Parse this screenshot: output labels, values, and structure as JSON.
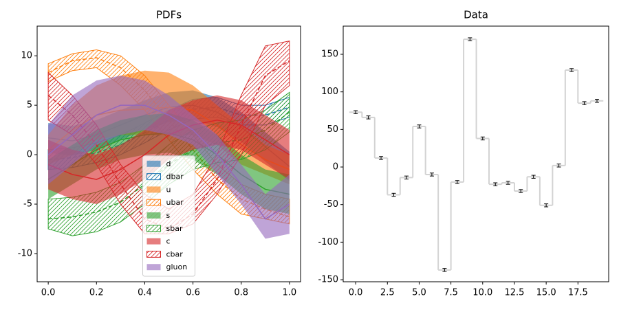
{
  "chart_data": [
    {
      "type": "band",
      "title": "PDFs",
      "x": [
        0,
        0.1,
        0.2,
        0.3,
        0.4,
        0.5,
        0.6,
        0.7,
        0.8,
        0.9,
        1.0
      ],
      "xlim": [
        -0.046,
        1.046
      ],
      "xticks": [
        {
          "value": 0,
          "label": "0.0"
        },
        0.2,
        0.4,
        0.6,
        0.8,
        {
          "value": 1,
          "label": "1.0"
        }
      ],
      "ylim": [
        -12.85,
        13
      ],
      "yticks": [
        -10,
        -5,
        0,
        5,
        10
      ],
      "legend": "lower center",
      "series": [
        {
          "name": "d",
          "color": "#1f77b4",
          "style": "filled",
          "values": [
            1.7,
            1.4,
            2.0,
            3.0,
            4.0,
            4.8,
            5.0,
            4.3,
            2.8,
            0.8,
            -1.2
          ],
          "upper": [
            3.2,
            2.9,
            3.5,
            4.5,
            5.5,
            6.3,
            6.5,
            5.8,
            4.3,
            2.3,
            0.3
          ],
          "lower": [
            0.2,
            -0.1,
            0.5,
            1.5,
            2.5,
            3.3,
            3.5,
            2.8,
            1.3,
            -0.7,
            -2.7
          ]
        },
        {
          "name": "dbar",
          "color": "#1f77b4",
          "style": "hatched",
          "values": [
            -0.5,
            -0.3,
            0.2,
            1.0,
            2.2,
            3.5,
            4.6,
            4.8,
            4.0,
            4.0,
            4.8
          ],
          "upper": [
            0.5,
            0.7,
            1.2,
            2.0,
            3.2,
            4.5,
            5.6,
            5.8,
            5.0,
            5.0,
            5.8
          ],
          "lower": [
            -1.5,
            -1.3,
            -0.8,
            0.0,
            1.2,
            2.5,
            3.6,
            3.8,
            3.0,
            3.0,
            3.8
          ]
        },
        {
          "name": "u",
          "color": "#ff7f0e",
          "style": "filled",
          "values": [
            0.5,
            2.5,
            4.0,
            4.5,
            4.6,
            4.8,
            4.5,
            3.0,
            1.0,
            -0.5,
            -1.5
          ],
          "upper": [
            2,
            5,
            7,
            8,
            8.5,
            8.3,
            7,
            5,
            3,
            1,
            0
          ],
          "lower": [
            -1,
            0,
            1.5,
            2,
            2,
            2,
            2,
            1,
            -1,
            -2,
            -3
          ]
        },
        {
          "name": "ubar",
          "color": "#ff7f0e",
          "style": "hatched",
          "values": [
            8.3,
            9.5,
            9.8,
            8.8,
            6.5,
            3.5,
            0.5,
            -2.5,
            -4.5,
            -5.5,
            -6.3
          ],
          "upper": [
            9.2,
            10.2,
            10.6,
            10,
            8,
            5,
            2,
            -1,
            -3,
            -4,
            -4.5
          ],
          "lower": [
            7.4,
            8.5,
            8.8,
            7,
            4.5,
            1.5,
            -1.5,
            -4,
            -6,
            -6.5,
            -7
          ]
        },
        {
          "name": "s",
          "color": "#2ca02c",
          "style": "filled",
          "values": [
            -2.5,
            -1,
            0.5,
            1.5,
            2.0,
            2.2,
            1.5,
            0,
            -2,
            -3.5,
            -4
          ],
          "upper": [
            -0.5,
            1,
            2.5,
            3.5,
            4.0,
            4.2,
            3.5,
            2,
            0,
            -1.5,
            -2
          ],
          "lower": [
            -4.5,
            -3,
            -1.5,
            -0.5,
            0.0,
            0.2,
            -0.5,
            -2,
            -4,
            -5.5,
            -6
          ]
        },
        {
          "name": "sbar",
          "color": "#2ca02c",
          "style": "hatched",
          "values": [
            -6.5,
            -6.3,
            -5.8,
            -4.8,
            -3,
            -1,
            0.5,
            1.2,
            1.5,
            2.5,
            4.3
          ],
          "upper": [
            -4.5,
            -4.3,
            -3.8,
            -2.8,
            -1,
            1,
            2.5,
            3.2,
            3.5,
            4.5,
            6.3
          ],
          "lower": [
            -7.5,
            -8.2,
            -7.8,
            -6.8,
            -5,
            -3,
            -1.5,
            -0.8,
            -0.5,
            0.5,
            2.3
          ]
        },
        {
          "name": "c",
          "color": "#d62728",
          "style": "filled",
          "values": [
            -1,
            -2,
            -2.5,
            -1.5,
            0,
            2,
            3,
            3.5,
            3,
            1.5,
            0
          ],
          "upper": [
            1.5,
            0.5,
            0,
            1,
            2.5,
            4.5,
            5.5,
            6,
            5.5,
            4,
            2.5
          ],
          "lower": [
            -3.5,
            -4.5,
            -5,
            -4,
            -2.5,
            -0.5,
            0.5,
            1,
            0.5,
            -1,
            -2.5
          ]
        },
        {
          "name": "cbar",
          "color": "#d62728",
          "style": "hatched",
          "values": [
            6,
            4,
            1,
            -3,
            -6.5,
            -7.5,
            -6,
            -2.5,
            3,
            8,
            9.5
          ],
          "upper": [
            8.3,
            6,
            3,
            -1,
            -4,
            -5.5,
            -4,
            0,
            6,
            11,
            11.5
          ],
          "lower": [
            3.5,
            2,
            -1,
            -5,
            -8,
            -8,
            -7,
            -4,
            0,
            5,
            7
          ]
        },
        {
          "name": "gluon",
          "color": "#9467bd",
          "style": "filled",
          "values": [
            0,
            2,
            4,
            5,
            5,
            4,
            2.5,
            0,
            -3,
            -6.5,
            -5
          ],
          "upper": [
            3,
            6,
            7.5,
            8,
            7.5,
            6,
            4,
            2,
            -1,
            -4,
            -2
          ],
          "lower": [
            -3,
            -1,
            1,
            2,
            2.5,
            2,
            1,
            -2,
            -5,
            -8.5,
            -8
          ]
        }
      ]
    },
    {
      "type": "step",
      "title": "Data",
      "color": "#d3d3d3",
      "error_color": "#000000",
      "x": [
        0,
        1,
        2,
        3,
        4,
        5,
        6,
        7,
        8,
        9,
        10,
        11,
        12,
        13,
        14,
        15,
        16,
        17,
        18,
        19
      ],
      "values": [
        73,
        66,
        12,
        -37,
        -14,
        54,
        -10,
        -137,
        -20,
        170,
        38,
        -23,
        -21,
        -32,
        -13,
        -51,
        2,
        129,
        85,
        88
      ],
      "errors": [
        2,
        2,
        2,
        2,
        2,
        2,
        2,
        2,
        2,
        2,
        2,
        2,
        2,
        2,
        2,
        2,
        2,
        2,
        2,
        2
      ],
      "xlim": [
        -0.98,
        19.92
      ],
      "xticks": [
        {
          "value": 0,
          "label": "0.0"
        },
        2.5,
        {
          "value": 5,
          "label": "5.0"
        },
        7.5,
        {
          "value": 10,
          "label": "10.0"
        },
        12.5,
        {
          "value": 15,
          "label": "15.0"
        },
        17.5
      ],
      "ylim": [
        -152.7,
        187.5
      ],
      "yticks": [
        -150,
        -100,
        -50,
        0,
        50,
        100,
        150
      ]
    }
  ]
}
